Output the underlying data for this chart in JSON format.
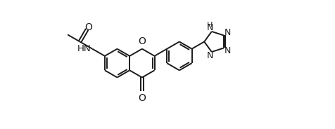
{
  "bg_color": "#ffffff",
  "line_color": "#1a1a1a",
  "N_color": "#1a1a1a",
  "bond_width": 1.4,
  "font_size": 8.5,
  "fig_width": 4.77,
  "fig_height": 1.84,
  "dpi": 100,
  "xlim": [
    0,
    10.5
  ],
  "ylim": [
    0.2,
    5.2
  ]
}
